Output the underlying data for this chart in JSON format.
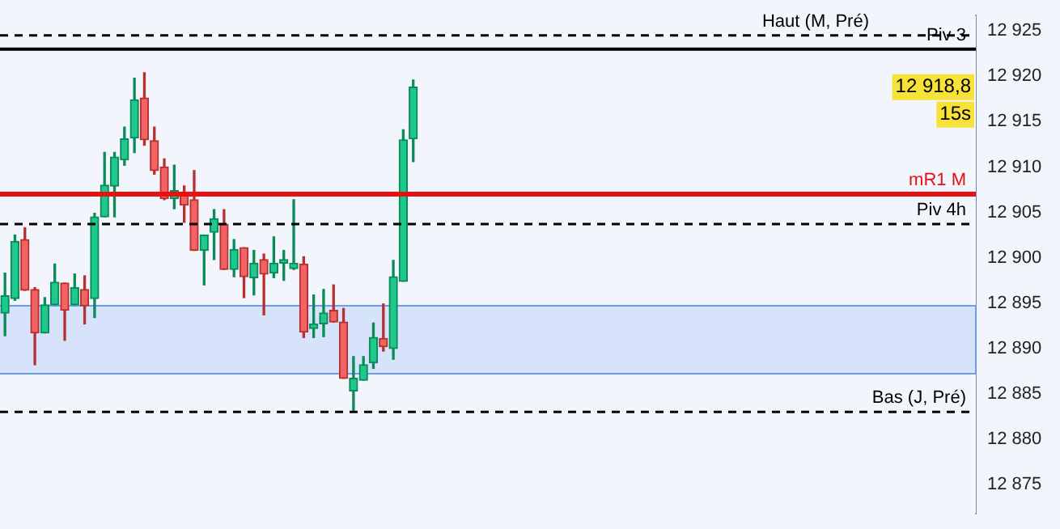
{
  "chart_data": {
    "type": "candlestick",
    "categories": [
      null,
      null,
      null,
      null,
      null,
      null,
      null,
      null,
      null,
      null,
      null,
      null,
      null,
      null,
      null,
      null,
      null,
      null,
      null,
      null,
      null,
      null,
      null,
      null,
      null,
      null,
      null,
      null,
      null,
      null,
      null,
      null,
      null,
      null,
      null,
      null,
      null,
      null,
      null,
      null,
      null,
      null,
      null,
      null,
      null,
      null,
      null,
      null,
      null,
      null,
      null,
      null,
      null,
      null,
      null,
      null,
      null,
      null,
      null,
      null,
      null,
      null,
      null,
      null,
      null,
      null,
      null,
      null,
      null,
      null,
      null,
      null,
      null,
      null,
      null,
      null,
      null,
      null,
      null,
      null,
      null,
      null,
      null,
      null,
      null,
      null,
      null,
      null,
      null,
      null,
      null,
      null,
      null,
      null,
      null,
      null,
      null,
      null
    ],
    "ohlc": [
      [
        12893.9,
        12898.3,
        12891.4,
        12895.8
      ],
      [
        12895.5,
        12902.5,
        12895.3,
        12901.8
      ],
      [
        12902.0,
        12903.3,
        12896.4,
        12896.4
      ],
      [
        12896.5,
        12896.7,
        12888.2,
        12891.7
      ],
      [
        12891.7,
        12895.6,
        12891.7,
        12894.8
      ],
      [
        12894.8,
        12899.3,
        12894.8,
        12897.3
      ],
      [
        12897.2,
        12897.2,
        12890.9,
        12894.2
      ],
      [
        12894.8,
        12898.2,
        12894.8,
        12896.7
      ],
      [
        12896.5,
        12898.0,
        12892.7,
        12894.7
      ],
      [
        12895.5,
        12904.9,
        12893.4,
        12904.5
      ],
      [
        12904.5,
        12911.6,
        12904.5,
        12908.0
      ],
      [
        12907.9,
        12911.6,
        12904.5,
        12911.1
      ],
      [
        12910.8,
        12914.4,
        12910.2,
        12913.1
      ],
      [
        12913.2,
        12919.8,
        12911.6,
        12917.4
      ],
      [
        12917.6,
        12920.4,
        12912.4,
        12913.0
      ],
      [
        12912.9,
        12914.4,
        12909.2,
        12909.6
      ],
      [
        12910.0,
        12910.9,
        12906.4,
        12906.5
      ],
      [
        12906.5,
        12910.2,
        12905.4,
        12907.4
      ],
      [
        12907.0,
        12907.9,
        12903.9,
        12905.8
      ],
      [
        12906.4,
        12909.6,
        12900.8,
        12900.8
      ],
      [
        12900.8,
        12902.5,
        12897.0,
        12902.5
      ],
      [
        12902.8,
        12905.3,
        12899.8,
        12904.3
      ],
      [
        12903.7,
        12905.3,
        12898.7,
        12898.7
      ],
      [
        12898.7,
        12902.0,
        12897.9,
        12900.9
      ],
      [
        12901.1,
        12901.1,
        12895.6,
        12897.9
      ],
      [
        12897.8,
        12900.8,
        12895.9,
        12899.4
      ],
      [
        12899.8,
        12900.4,
        12893.7,
        12898.2
      ],
      [
        12898.3,
        12902.3,
        12897.8,
        12899.4
      ],
      [
        12899.4,
        12900.8,
        12897.5,
        12899.8
      ],
      [
        12898.8,
        12906.4,
        12898.7,
        12899.4
      ],
      [
        12899.3,
        12900.1,
        12891.2,
        12891.8
      ],
      [
        12892.2,
        12895.9,
        12891.2,
        12892.7
      ],
      [
        12892.7,
        12896.5,
        12891.3,
        12893.9
      ],
      [
        12894.2,
        12897.0,
        12892.9,
        12892.9
      ],
      [
        12892.9,
        12894.4,
        12886.7,
        12886.7
      ],
      [
        12885.3,
        12889.1,
        12883.0,
        12886.7
      ],
      [
        12886.5,
        12889.1,
        12886.5,
        12888.2
      ],
      [
        12888.4,
        12892.8,
        12887.8,
        12891.2
      ],
      [
        12891.1,
        12894.9,
        12889.7,
        12890.2
      ],
      [
        12890.0,
        12899.7,
        12888.8,
        12897.9
      ],
      [
        12897.4,
        12914.1,
        12897.4,
        12913.0
      ],
      [
        12913.1,
        12919.6,
        12910.6,
        12918.8
      ],
      null,
      null,
      null,
      null,
      null,
      null,
      null,
      null,
      null,
      null,
      null,
      null,
      null,
      null,
      null,
      null,
      null,
      null,
      null,
      null,
      null,
      null,
      null,
      null,
      null,
      null,
      null,
      null,
      null,
      null,
      null,
      null,
      null,
      null,
      null,
      null,
      null,
      null,
      null,
      null,
      null,
      null,
      null,
      null,
      null,
      null,
      null,
      null,
      null,
      null,
      null,
      null,
      null,
      null,
      null,
      null
    ],
    "ylim": [
      12871.8,
      12926.7
    ],
    "yticks": [
      {
        "value": 12875,
        "label": "12 875"
      },
      {
        "value": 12880,
        "label": "12 880"
      },
      {
        "value": 12885,
        "label": "12 885"
      },
      {
        "value": 12890,
        "label": "12 890"
      },
      {
        "value": 12895,
        "label": "12 895"
      },
      {
        "value": 12900,
        "label": "12 900"
      },
      {
        "value": 12905,
        "label": "12 905"
      },
      {
        "value": 12910,
        "label": "12 910"
      },
      {
        "value": 12915,
        "label": "12 915"
      },
      {
        "value": 12920,
        "label": "12 920"
      },
      {
        "value": 12925,
        "label": "12 925"
      }
    ],
    "tick_labels": "y",
    "grid": false,
    "legend": false,
    "ref_lines": [
      {
        "axis": "y",
        "value": 12924.5,
        "label": "Haut (M, Pré)",
        "color": "#000000",
        "line_style": "dashed"
      },
      {
        "axis": "y",
        "value": 12923,
        "label": "Piv 3",
        "color": "#000000",
        "line_style": "solid"
      },
      {
        "axis": "y",
        "value": 12907,
        "label": "mR1 M",
        "color": "#e81010",
        "line_style": "solid"
      },
      {
        "axis": "y",
        "value": 12903.7,
        "label": "Piv 4h",
        "color": "#000000",
        "line_style": "dashed"
      },
      {
        "axis": "y",
        "value": 12883,
        "label": "Bas (J, Pré)",
        "color": "#000000",
        "line_style": "dashed"
      }
    ],
    "bands": [
      {
        "axis": "y",
        "from": 12887.3,
        "to": 12894.8,
        "color": "#d6e3fb"
      }
    ],
    "annotations": [
      "12 918,8",
      "15s"
    ]
  }
}
